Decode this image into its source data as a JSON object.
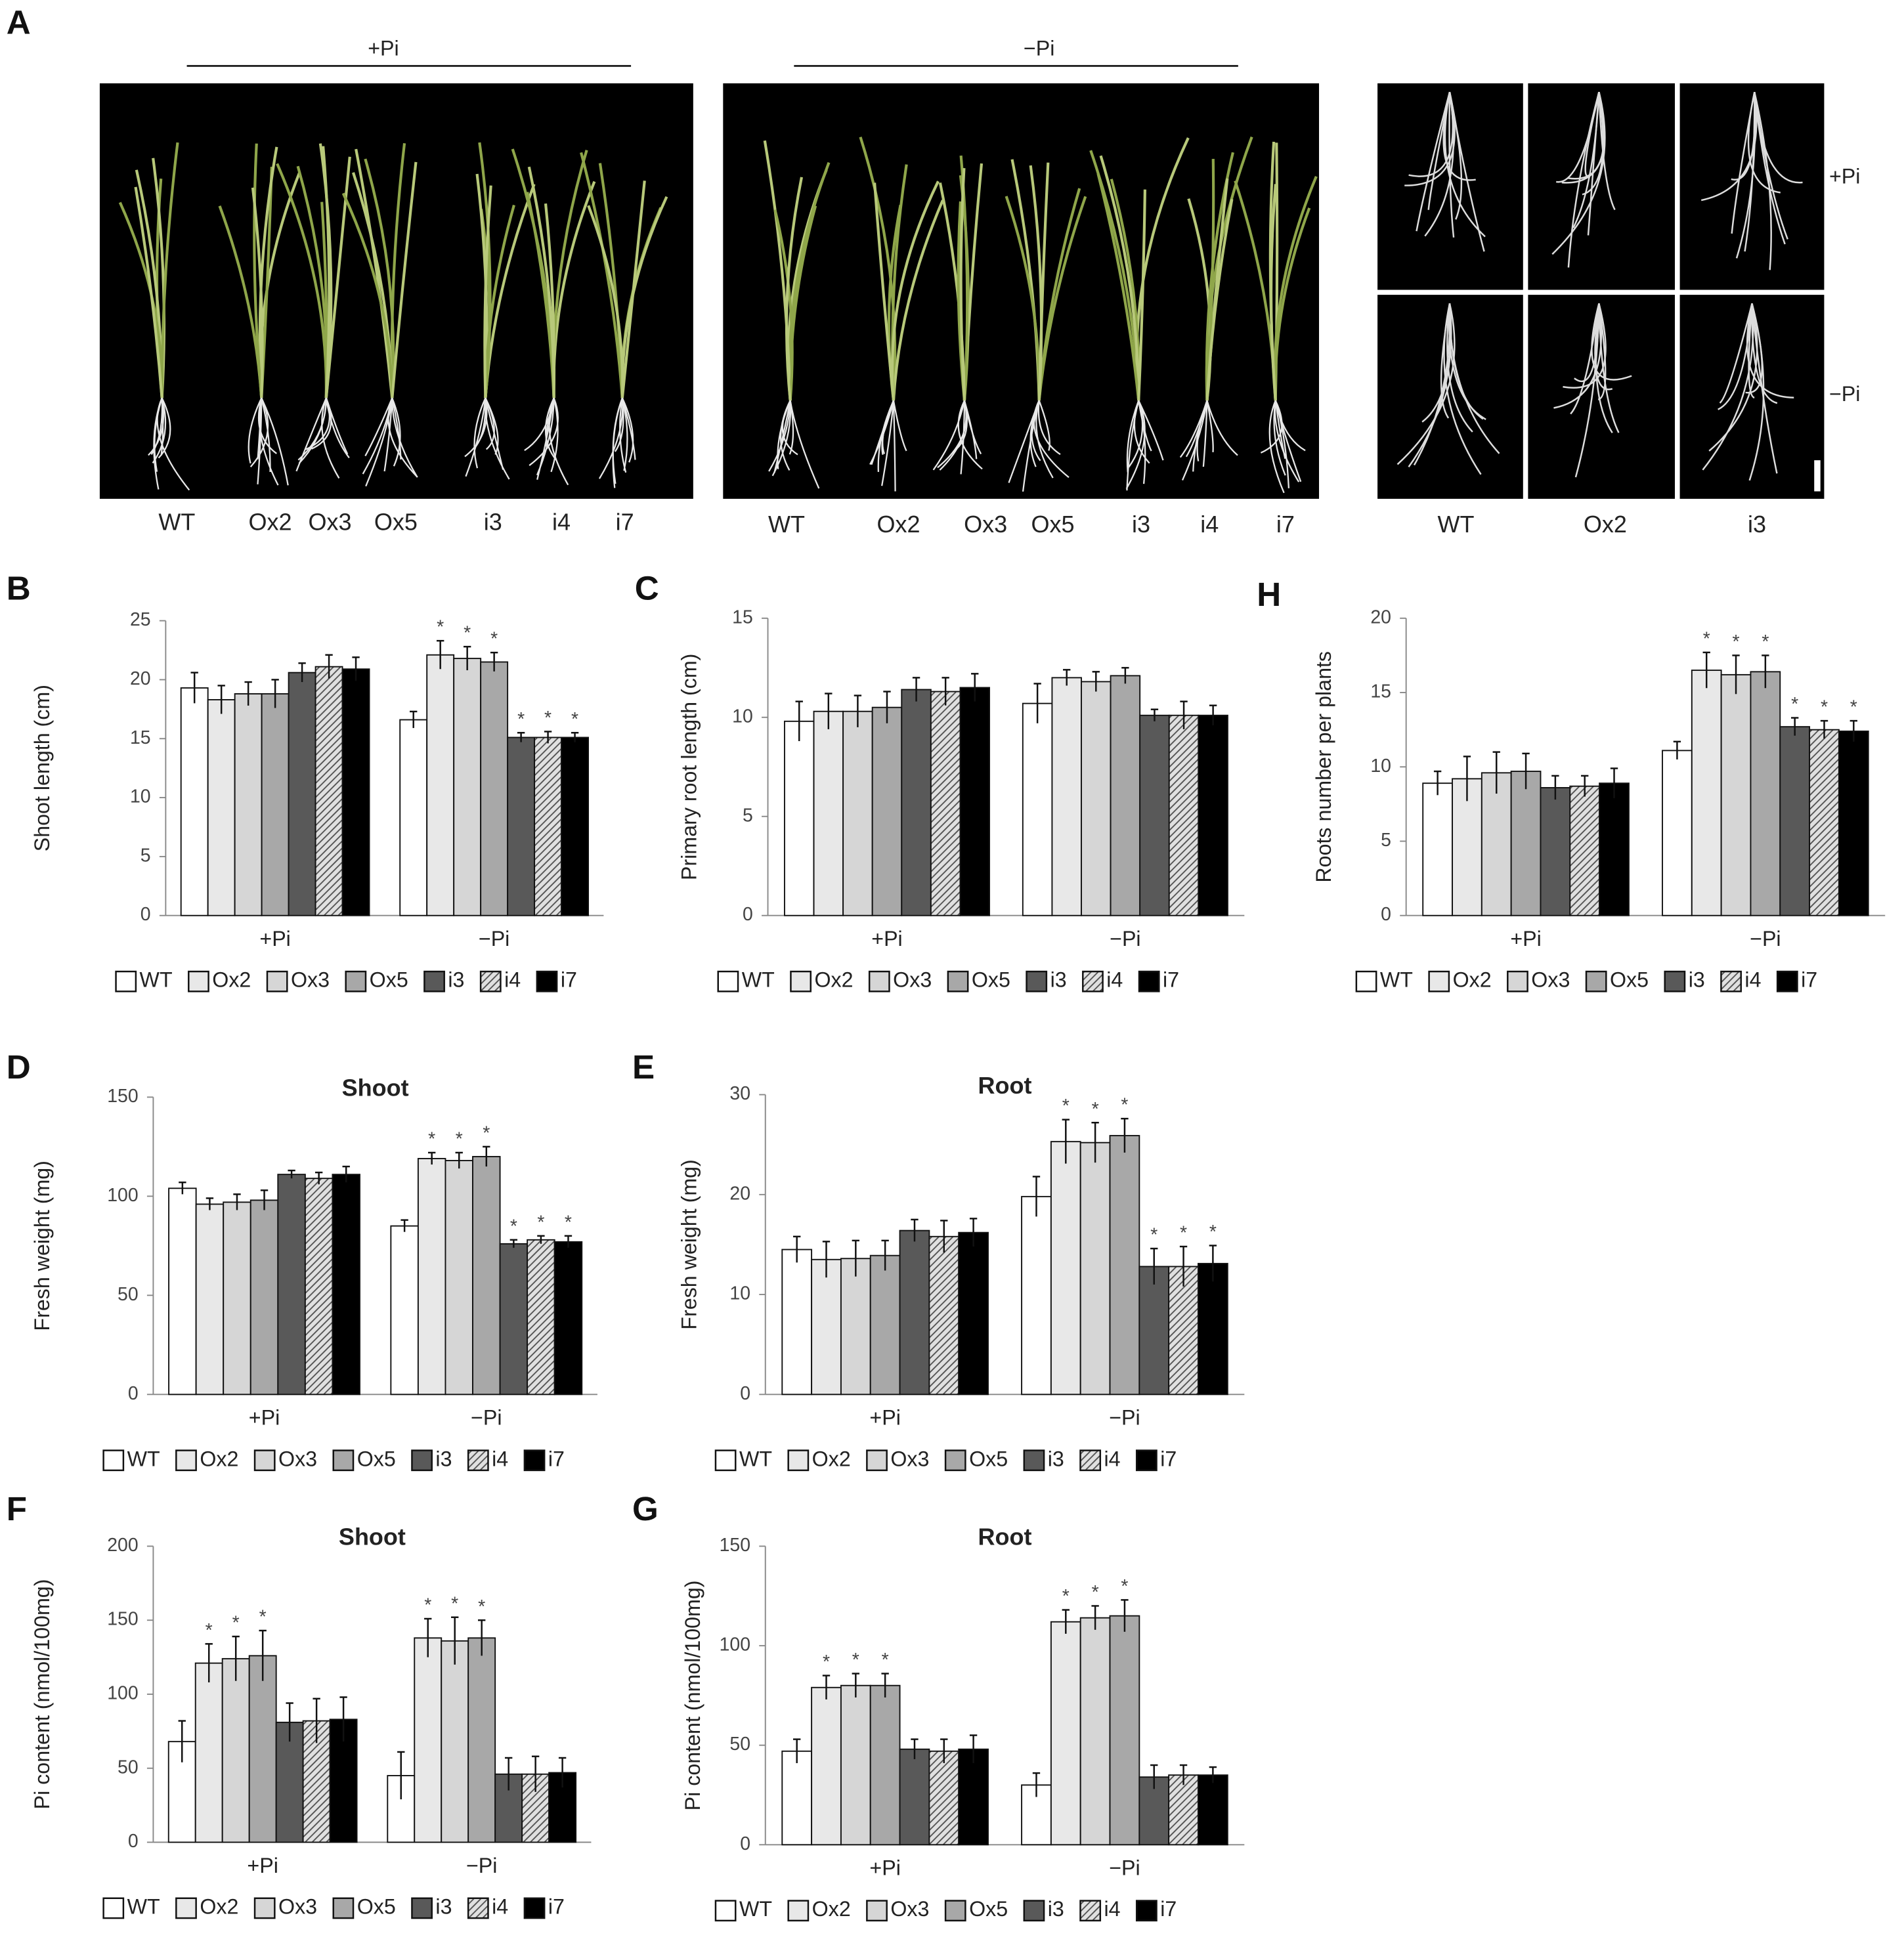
{
  "figure": {
    "panel_a": {
      "label": "A",
      "conditions": [
        "+Pi",
        "−Pi"
      ],
      "photo_1_labels": [
        "WT",
        "Ox2",
        "Ox3",
        "Ox5",
        "i3",
        "i4",
        "i7"
      ],
      "photo_2_labels": [
        "WT",
        "Ox2",
        "Ox3",
        "Ox5",
        "i3",
        "i4",
        "i7"
      ],
      "roots_labels": [
        "WT",
        "Ox2",
        "i3"
      ],
      "roots_conditions": [
        "+Pi",
        "−Pi"
      ]
    }
  },
  "chart_data": [
    {
      "panel": "B",
      "type": "bar",
      "y_label": "Shoot length (cm)",
      "categories": [
        "+Pi",
        "−Pi"
      ],
      "ylim": [
        0,
        25
      ],
      "yticks": [
        0,
        5,
        10,
        15,
        20,
        25
      ],
      "grid": false,
      "legend": "bottom",
      "marker": "*",
      "series": [
        {
          "name": "WT",
          "color": "#ffffff",
          "values": [
            19.3,
            16.6
          ],
          "errors": [
            1.3,
            0.7
          ],
          "significant": [
            false,
            false
          ]
        },
        {
          "name": "Ox2",
          "color": "#e8e8e8",
          "values": [
            18.3,
            22.1
          ],
          "errors": [
            1.2,
            1.2
          ],
          "significant": [
            false,
            true
          ]
        },
        {
          "name": "Ox3",
          "color": "#d6d6d6",
          "values": [
            18.8,
            21.8
          ],
          "errors": [
            1.0,
            1.0
          ],
          "significant": [
            false,
            true
          ]
        },
        {
          "name": "Ox5",
          "color": "#a8a8a8",
          "values": [
            18.8,
            21.5
          ],
          "errors": [
            1.2,
            0.8
          ],
          "significant": [
            false,
            true
          ]
        },
        {
          "name": "i3",
          "color": "#595959",
          "values": [
            20.6,
            15.1
          ],
          "errors": [
            0.8,
            0.4
          ],
          "significant": [
            false,
            true
          ]
        },
        {
          "name": "i4",
          "color": "#bfbfbf",
          "hatch": true,
          "values": [
            21.1,
            15.1
          ],
          "errors": [
            1.0,
            0.5
          ],
          "significant": [
            false,
            true
          ]
        },
        {
          "name": "i7",
          "color": "#000000",
          "values": [
            20.9,
            15.1
          ],
          "errors": [
            1.0,
            0.4
          ],
          "significant": [
            false,
            true
          ]
        }
      ]
    },
    {
      "panel": "C",
      "type": "bar",
      "y_label": "Primary root length (cm)",
      "categories": [
        "+Pi",
        "−Pi"
      ],
      "ylim": [
        0,
        15
      ],
      "yticks": [
        0,
        5,
        10,
        15
      ],
      "grid": false,
      "legend": "bottom",
      "marker": "*",
      "series": [
        {
          "name": "WT",
          "color": "#ffffff",
          "values": [
            9.8,
            10.7
          ],
          "errors": [
            1.0,
            1.0
          ],
          "significant": [
            false,
            false
          ]
        },
        {
          "name": "Ox2",
          "color": "#e8e8e8",
          "values": [
            10.3,
            12.0
          ],
          "errors": [
            0.9,
            0.4
          ],
          "significant": [
            false,
            false
          ]
        },
        {
          "name": "Ox3",
          "color": "#d6d6d6",
          "values": [
            10.3,
            11.8
          ],
          "errors": [
            0.8,
            0.5
          ],
          "significant": [
            false,
            false
          ]
        },
        {
          "name": "Ox5",
          "color": "#a8a8a8",
          "values": [
            10.5,
            12.1
          ],
          "errors": [
            0.8,
            0.4
          ],
          "significant": [
            false,
            false
          ]
        },
        {
          "name": "i3",
          "color": "#595959",
          "values": [
            11.4,
            10.1
          ],
          "errors": [
            0.6,
            0.3
          ],
          "significant": [
            false,
            false
          ]
        },
        {
          "name": "i4",
          "color": "#bfbfbf",
          "hatch": true,
          "values": [
            11.3,
            10.1
          ],
          "errors": [
            0.7,
            0.7
          ],
          "significant": [
            false,
            false
          ]
        },
        {
          "name": "i7",
          "color": "#000000",
          "values": [
            11.5,
            10.1
          ],
          "errors": [
            0.7,
            0.5
          ],
          "significant": [
            false,
            false
          ]
        }
      ]
    },
    {
      "panel": "H",
      "type": "bar",
      "y_label": "Roots number per plants",
      "categories": [
        "+Pi",
        "−Pi"
      ],
      "ylim": [
        0,
        20
      ],
      "yticks": [
        0,
        5,
        10,
        15,
        20
      ],
      "grid": false,
      "legend": "bottom",
      "marker": "*",
      "series": [
        {
          "name": "WT",
          "color": "#ffffff",
          "values": [
            8.9,
            11.1
          ],
          "errors": [
            0.8,
            0.6
          ],
          "significant": [
            false,
            false
          ]
        },
        {
          "name": "Ox2",
          "color": "#e8e8e8",
          "values": [
            9.2,
            16.5
          ],
          "errors": [
            1.5,
            1.2
          ],
          "significant": [
            false,
            true
          ]
        },
        {
          "name": "Ox3",
          "color": "#d6d6d6",
          "values": [
            9.6,
            16.2
          ],
          "errors": [
            1.4,
            1.3
          ],
          "significant": [
            false,
            true
          ]
        },
        {
          "name": "Ox5",
          "color": "#a8a8a8",
          "values": [
            9.7,
            16.4
          ],
          "errors": [
            1.2,
            1.1
          ],
          "significant": [
            false,
            true
          ]
        },
        {
          "name": "i3",
          "color": "#595959",
          "values": [
            8.6,
            12.7
          ],
          "errors": [
            0.8,
            0.6
          ],
          "significant": [
            false,
            true
          ]
        },
        {
          "name": "i4",
          "color": "#bfbfbf",
          "hatch": true,
          "values": [
            8.7,
            12.5
          ],
          "errors": [
            0.7,
            0.6
          ],
          "significant": [
            false,
            true
          ]
        },
        {
          "name": "i7",
          "color": "#000000",
          "values": [
            8.9,
            12.4
          ],
          "errors": [
            1.0,
            0.7
          ],
          "significant": [
            false,
            true
          ]
        }
      ]
    },
    {
      "panel": "D",
      "type": "bar",
      "title": "Shoot",
      "y_label": "Fresh weight (mg)",
      "categories": [
        "+Pi",
        "−Pi"
      ],
      "ylim": [
        0,
        150
      ],
      "yticks": [
        0,
        50,
        100,
        150
      ],
      "grid": false,
      "legend": "bottom",
      "marker": "*",
      "series": [
        {
          "name": "WT",
          "color": "#ffffff",
          "values": [
            104,
            85
          ],
          "errors": [
            3,
            3
          ],
          "significant": [
            false,
            false
          ]
        },
        {
          "name": "Ox2",
          "color": "#e8e8e8",
          "values": [
            96,
            119
          ],
          "errors": [
            3,
            3
          ],
          "significant": [
            false,
            true
          ]
        },
        {
          "name": "Ox3",
          "color": "#d6d6d6",
          "values": [
            97,
            118
          ],
          "errors": [
            4,
            4
          ],
          "significant": [
            false,
            true
          ]
        },
        {
          "name": "Ox5",
          "color": "#a8a8a8",
          "values": [
            98,
            120
          ],
          "errors": [
            5,
            5
          ],
          "significant": [
            false,
            true
          ]
        },
        {
          "name": "i3",
          "color": "#595959",
          "values": [
            111,
            76
          ],
          "errors": [
            2,
            2
          ],
          "significant": [
            false,
            true
          ]
        },
        {
          "name": "i4",
          "color": "#bfbfbf",
          "hatch": true,
          "values": [
            109,
            78
          ],
          "errors": [
            3,
            2
          ],
          "significant": [
            false,
            true
          ]
        },
        {
          "name": "i7",
          "color": "#000000",
          "values": [
            111,
            77
          ],
          "errors": [
            4,
            3
          ],
          "significant": [
            false,
            true
          ]
        }
      ]
    },
    {
      "panel": "E",
      "type": "bar",
      "title": "Root",
      "y_label": "Fresh weight (mg)",
      "categories": [
        "+Pi",
        "−Pi"
      ],
      "ylim": [
        0,
        30
      ],
      "yticks": [
        0,
        10,
        20,
        30
      ],
      "grid": false,
      "legend": "bottom",
      "marker": "*",
      "series": [
        {
          "name": "WT",
          "color": "#ffffff",
          "values": [
            14.5,
            19.8
          ],
          "errors": [
            1.3,
            2.0
          ],
          "significant": [
            false,
            false
          ]
        },
        {
          "name": "Ox2",
          "color": "#e8e8e8",
          "values": [
            13.5,
            25.3
          ],
          "errors": [
            1.8,
            2.2
          ],
          "significant": [
            false,
            true
          ]
        },
        {
          "name": "Ox3",
          "color": "#d6d6d6",
          "values": [
            13.6,
            25.2
          ],
          "errors": [
            1.8,
            2.0
          ],
          "significant": [
            false,
            true
          ]
        },
        {
          "name": "Ox5",
          "color": "#a8a8a8",
          "values": [
            13.9,
            25.9
          ],
          "errors": [
            1.5,
            1.7
          ],
          "significant": [
            false,
            true
          ]
        },
        {
          "name": "i3",
          "color": "#595959",
          "values": [
            16.4,
            12.8
          ],
          "errors": [
            1.1,
            1.8
          ],
          "significant": [
            false,
            true
          ]
        },
        {
          "name": "i4",
          "color": "#bfbfbf",
          "hatch": true,
          "values": [
            15.8,
            12.8
          ],
          "errors": [
            1.6,
            2.0
          ],
          "significant": [
            false,
            true
          ]
        },
        {
          "name": "i7",
          "color": "#000000",
          "values": [
            16.2,
            13.1
          ],
          "errors": [
            1.4,
            1.8
          ],
          "significant": [
            false,
            true
          ]
        }
      ]
    },
    {
      "panel": "F",
      "type": "bar",
      "title": "Shoot",
      "y_label": "Pi content (nmol/100mg)",
      "categories": [
        "+Pi",
        "−Pi"
      ],
      "ylim": [
        0,
        200
      ],
      "yticks": [
        0,
        50,
        100,
        150,
        200
      ],
      "grid": false,
      "legend": "bottom",
      "marker": "*",
      "series": [
        {
          "name": "WT",
          "color": "#ffffff",
          "values": [
            68,
            45
          ],
          "errors": [
            14,
            16
          ],
          "significant": [
            false,
            false
          ]
        },
        {
          "name": "Ox2",
          "color": "#e8e8e8",
          "values": [
            121,
            138
          ],
          "errors": [
            13,
            13
          ],
          "significant": [
            true,
            true
          ]
        },
        {
          "name": "Ox3",
          "color": "#d6d6d6",
          "values": [
            124,
            136
          ],
          "errors": [
            15,
            16
          ],
          "significant": [
            true,
            true
          ]
        },
        {
          "name": "Ox5",
          "color": "#a8a8a8",
          "values": [
            126,
            138
          ],
          "errors": [
            17,
            12
          ],
          "significant": [
            true,
            true
          ]
        },
        {
          "name": "i3",
          "color": "#595959",
          "values": [
            81,
            46
          ],
          "errors": [
            13,
            11
          ],
          "significant": [
            false,
            false
          ]
        },
        {
          "name": "i4",
          "color": "#bfbfbf",
          "hatch": true,
          "values": [
            82,
            46
          ],
          "errors": [
            15,
            12
          ],
          "significant": [
            false,
            false
          ]
        },
        {
          "name": "i7",
          "color": "#000000",
          "values": [
            83,
            47
          ],
          "errors": [
            15,
            10
          ],
          "significant": [
            false,
            false
          ]
        }
      ]
    },
    {
      "panel": "G",
      "type": "bar",
      "title": "Root",
      "y_label": "Pi content (nmol/100mg)",
      "categories": [
        "+Pi",
        "−Pi"
      ],
      "ylim": [
        0,
        150
      ],
      "yticks": [
        0,
        50,
        100,
        150
      ],
      "grid": false,
      "legend": "bottom",
      "marker": "*",
      "series": [
        {
          "name": "WT",
          "color": "#ffffff",
          "values": [
            47,
            30
          ],
          "errors": [
            6,
            6
          ],
          "significant": [
            false,
            false
          ]
        },
        {
          "name": "Ox2",
          "color": "#e8e8e8",
          "values": [
            79,
            112
          ],
          "errors": [
            6,
            6
          ],
          "significant": [
            true,
            true
          ]
        },
        {
          "name": "Ox3",
          "color": "#d6d6d6",
          "values": [
            80,
            114
          ],
          "errors": [
            6,
            6
          ],
          "significant": [
            true,
            true
          ]
        },
        {
          "name": "Ox5",
          "color": "#a8a8a8",
          "values": [
            80,
            115
          ],
          "errors": [
            6,
            8
          ],
          "significant": [
            true,
            true
          ]
        },
        {
          "name": "i3",
          "color": "#595959",
          "values": [
            48,
            34
          ],
          "errors": [
            5,
            6
          ],
          "significant": [
            false,
            false
          ]
        },
        {
          "name": "i4",
          "color": "#bfbfbf",
          "hatch": true,
          "values": [
            47,
            35
          ],
          "errors": [
            6,
            5
          ],
          "significant": [
            false,
            false
          ]
        },
        {
          "name": "i7",
          "color": "#000000",
          "values": [
            48,
            35
          ],
          "errors": [
            7,
            4
          ],
          "significant": [
            false,
            false
          ]
        }
      ]
    }
  ]
}
